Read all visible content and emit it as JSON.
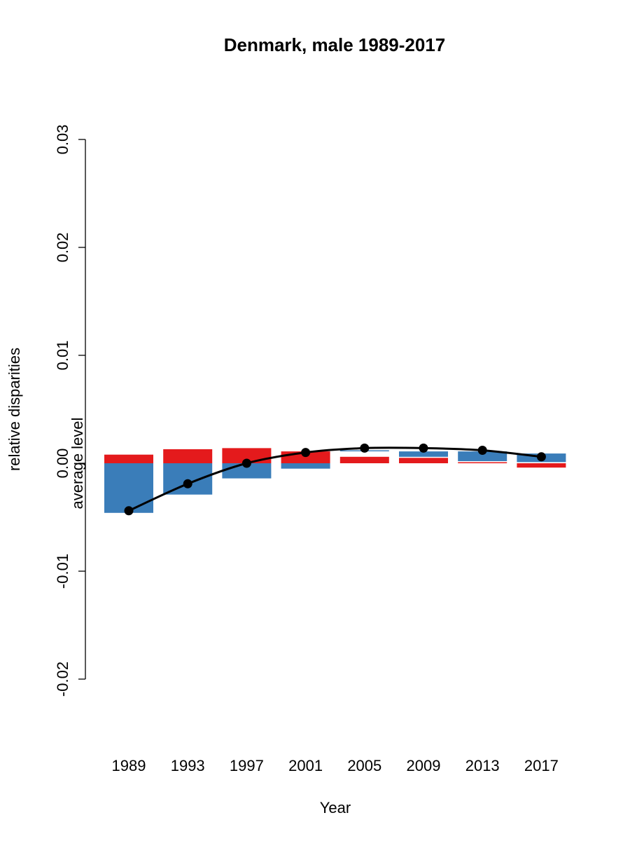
{
  "chart_data": {
    "type": "bar",
    "title": "Denmark, male 1989-2017",
    "xlabel": "Year",
    "ylabel": "relative disparities",
    "inner_label": "average level",
    "categories": [
      "1989",
      "1993",
      "1997",
      "2001",
      "2005",
      "2009",
      "2013",
      "2017"
    ],
    "ylim": [
      -0.02,
      0.03
    ],
    "yticks": [
      {
        "value": -0.02,
        "label": "-0.02"
      },
      {
        "value": -0.01,
        "label": "-0.01"
      },
      {
        "value": 0.0,
        "label": "0.00"
      },
      {
        "value": 0.01,
        "label": "0.01"
      },
      {
        "value": 0.02,
        "label": "0.02"
      },
      {
        "value": 0.03,
        "label": "0.03"
      }
    ],
    "series": [
      {
        "color": "#3A7DB9",
        "segments": [
          [
            0.0,
            -0.0046
          ],
          [
            0.0,
            -0.0029
          ],
          [
            0.0,
            -0.0014
          ],
          [
            0.0,
            -0.0005
          ],
          [
            0.0011,
            0.0012
          ],
          [
            0.0011,
            0.0006
          ],
          [
            0.0011,
            0.0002
          ],
          [
            0.0009,
            0.0001
          ]
        ]
      },
      {
        "color": "#E41A1C",
        "segments": [
          [
            0.0,
            0.0008
          ],
          [
            0.0,
            0.0013
          ],
          [
            0.0,
            0.0014
          ],
          [
            0.0,
            0.0011
          ],
          [
            0.0,
            0.0006
          ],
          [
            0.0,
            0.0005
          ],
          [
            0.0,
            0.0001
          ],
          [
            0.0,
            -0.0004
          ]
        ]
      }
    ],
    "line": {
      "color": "#000000",
      "values": [
        -0.0044,
        -0.0019,
        0.0,
        0.001,
        0.0014,
        0.0014,
        0.0012,
        0.0006
      ]
    },
    "grid": false,
    "legend": "none"
  }
}
